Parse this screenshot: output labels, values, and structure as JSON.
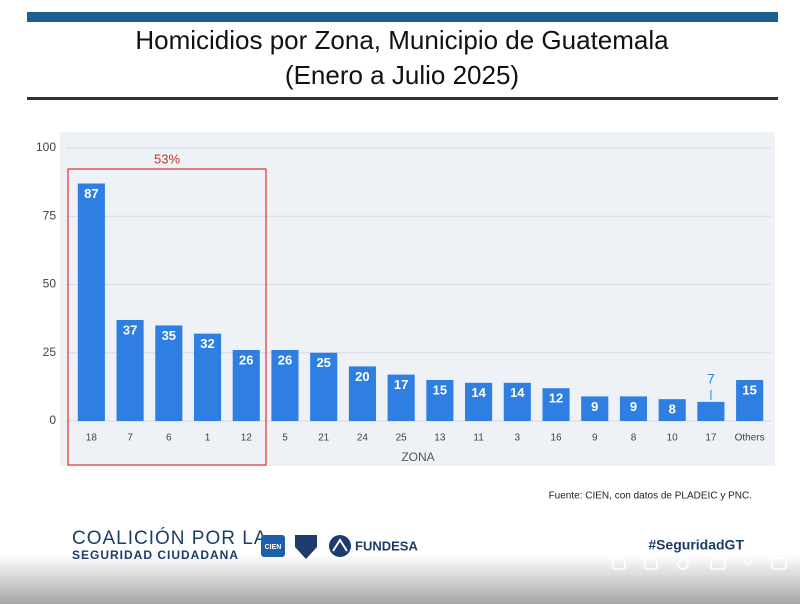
{
  "chart_data": {
    "type": "bar",
    "title": "Homicidios por Zona, Municipio de Guatemala",
    "subtitle": "(Enero a Julio 2025)",
    "x_label": "ZONA",
    "annotation": "53%",
    "source": "Fuente: CIEN, con datos de PLADEIC y PNC.",
    "categories": [
      "18",
      "7",
      "6",
      "1",
      "12",
      "5",
      "21",
      "24",
      "25",
      "13",
      "11",
      "3",
      "16",
      "9",
      "8",
      "10",
      "17",
      "Others"
    ],
    "values": [
      87,
      37,
      35,
      32,
      26,
      26,
      25,
      20,
      17,
      15,
      14,
      14,
      12,
      9,
      9,
      8,
      7,
      15
    ],
    "color": "#2f7fe3",
    "ylim": [
      0,
      100
    ],
    "yticks": [
      0,
      25,
      50,
      75,
      100
    ],
    "grid": true
  },
  "footer": {
    "coalition_line1": "COALICIÓN POR LA",
    "coalition_line2": "SEGURIDAD CIUDADANA",
    "cien": "CIEN",
    "fundesa": "FUNDESA",
    "hashtag": "#SeguridadGT"
  }
}
